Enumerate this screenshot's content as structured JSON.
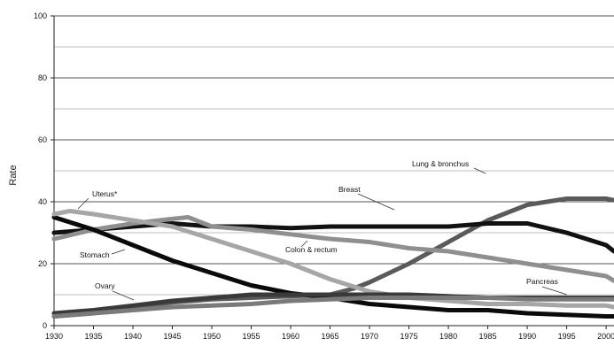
{
  "chart_data": {
    "type": "line",
    "title": "",
    "xlabel": "",
    "ylabel": "Rate",
    "xlim": [
      1930,
      2001
    ],
    "ylim": [
      0,
      100
    ],
    "x_ticks": [
      "1930",
      "1935",
      "1940",
      "1945",
      "1950",
      "1955",
      "1960",
      "1965",
      "1970",
      "1975",
      "1980",
      "1985",
      "1990",
      "1995",
      "2000",
      "2005"
    ],
    "y_ticks": [
      "0",
      "20",
      "40",
      "60",
      "80",
      "100"
    ],
    "grid": true,
    "legend": "none",
    "series": [
      {
        "name": "Lung & bronchus",
        "color": "#5a5a5a",
        "x": [
          1930,
          1935,
          1940,
          1945,
          1950,
          1955,
          1960,
          1965,
          1968,
          1970,
          1975,
          1980,
          1985,
          1990,
          1995,
          2000,
          2001
        ],
        "y": [
          3,
          4,
          6,
          7.5,
          8.5,
          9,
          9.5,
          10,
          12,
          14,
          20,
          27,
          34,
          39,
          41,
          41,
          40.5
        ]
      },
      {
        "name": "Breast",
        "color": "#111111",
        "x": [
          1930,
          1935,
          1940,
          1945,
          1950,
          1955,
          1960,
          1965,
          1970,
          1975,
          1980,
          1985,
          1990,
          1995,
          2000,
          2001
        ],
        "y": [
          30,
          31,
          32,
          33,
          32,
          32,
          31.5,
          32,
          32,
          32,
          32,
          33,
          33,
          30,
          26,
          24
        ]
      },
      {
        "name": "Colon & rectum",
        "color": "#8f8f8f",
        "x": [
          1930,
          1935,
          1940,
          1945,
          1947,
          1950,
          1955,
          1960,
          1965,
          1970,
          1975,
          1980,
          1985,
          1990,
          1995,
          2000,
          2001
        ],
        "y": [
          28,
          31,
          33,
          34.5,
          35,
          32,
          31,
          29.5,
          28,
          27,
          25,
          24,
          22,
          20,
          18,
          16,
          14.5
        ]
      },
      {
        "name": "Stomach",
        "color": "#0a0a0a",
        "x": [
          1930,
          1935,
          1940,
          1945,
          1950,
          1955,
          1960,
          1965,
          1970,
          1975,
          1980,
          1985,
          1990,
          1995,
          2000,
          2001
        ],
        "y": [
          35,
          31,
          26,
          21,
          17,
          13,
          10.5,
          9,
          7,
          6,
          5,
          5,
          4,
          3.5,
          3,
          3
        ]
      },
      {
        "name": "Uterus*",
        "color": "#a6a6a6",
        "x": [
          1930,
          1932,
          1935,
          1940,
          1945,
          1950,
          1955,
          1960,
          1965,
          1970,
          1975,
          1980,
          1985,
          1990,
          1995,
          2000,
          2001
        ],
        "y": [
          36,
          37,
          36,
          34,
          32,
          28,
          24,
          20,
          15,
          11,
          9,
          8,
          7,
          7,
          6.5,
          6.5,
          6
        ]
      },
      {
        "name": "Ovary",
        "color": "#3a3a3a",
        "x": [
          1930,
          1935,
          1940,
          1945,
          1950,
          1955,
          1960,
          1965,
          1970,
          1975,
          1980,
          1985,
          1990,
          1995,
          2000,
          2001
        ],
        "y": [
          4,
          5,
          6.5,
          8,
          9,
          10,
          10,
          10,
          10,
          10,
          9.5,
          9,
          9,
          9,
          9,
          9
        ]
      },
      {
        "name": "Pancreas",
        "color": "#7a7a7a",
        "x": [
          1930,
          1935,
          1940,
          1945,
          1950,
          1955,
          1960,
          1965,
          1970,
          1975,
          1980,
          1985,
          1990,
          1995,
          2000,
          2001
        ],
        "y": [
          3,
          4,
          5,
          6,
          6.5,
          7,
          8,
          8.5,
          9,
          9,
          9,
          9,
          8.5,
          8.5,
          8.5,
          8.5
        ]
      }
    ],
    "annotations": [
      {
        "text": "Uterus*",
        "series": "Uterus*"
      },
      {
        "text": "Breast",
        "series": "Breast"
      },
      {
        "text": "Lung & bronchus",
        "series": "Lung & bronchus"
      },
      {
        "text": "Stomach",
        "series": "Stomach"
      },
      {
        "text": "Colon & rectum",
        "series": "Colon & rectum"
      },
      {
        "text": "Ovary",
        "series": "Ovary"
      },
      {
        "text": "Pancreas",
        "series": "Pancreas"
      }
    ]
  }
}
